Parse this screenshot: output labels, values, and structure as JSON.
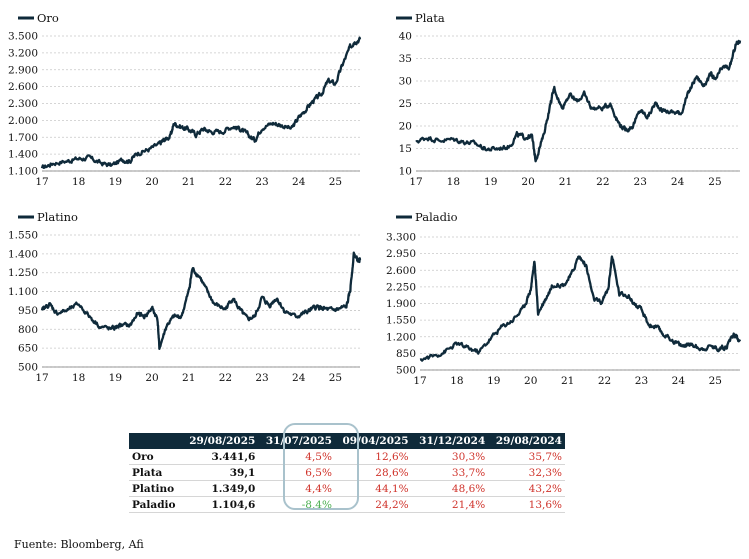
{
  "chart_data": [
    {
      "type": "line",
      "legend": "Oro",
      "x_ticks": [
        "17",
        "18",
        "19",
        "20",
        "21",
        "22",
        "23",
        "24",
        "25"
      ],
      "y_ticks": [
        "1.100",
        "1.400",
        "1.700",
        "2.000",
        "2.300",
        "2.600",
        "2.900",
        "3.200",
        "3.500"
      ],
      "ylim": [
        1100,
        3500
      ],
      "xlim": [
        2017.0,
        2025.67
      ],
      "points": [
        [
          2017.0,
          1150
        ],
        [
          2017.3,
          1240
        ],
        [
          2017.7,
          1280
        ],
        [
          2018.0,
          1320
        ],
        [
          2018.3,
          1330
        ],
        [
          2018.6,
          1240
        ],
        [
          2018.9,
          1200
        ],
        [
          2019.2,
          1300
        ],
        [
          2019.4,
          1280
        ],
        [
          2019.6,
          1420
        ],
        [
          2019.9,
          1480
        ],
        [
          2020.2,
          1580
        ],
        [
          2020.3,
          1640
        ],
        [
          2020.5,
          1720
        ],
        [
          2020.6,
          1950
        ],
        [
          2020.8,
          1880
        ],
        [
          2021.0,
          1840
        ],
        [
          2021.2,
          1750
        ],
        [
          2021.4,
          1850
        ],
        [
          2021.6,
          1800
        ],
        [
          2021.9,
          1800
        ],
        [
          2022.2,
          1900
        ],
        [
          2022.4,
          1850
        ],
        [
          2022.6,
          1750
        ],
        [
          2022.8,
          1650
        ],
        [
          2023.0,
          1880
        ],
        [
          2023.3,
          1950
        ],
        [
          2023.5,
          1920
        ],
        [
          2023.8,
          1850
        ],
        [
          2024.0,
          2050
        ],
        [
          2024.2,
          2200
        ],
        [
          2024.4,
          2350
        ],
        [
          2024.6,
          2450
        ],
        [
          2024.8,
          2700
        ],
        [
          2025.0,
          2650
        ],
        [
          2025.2,
          3000
        ],
        [
          2025.4,
          3300
        ],
        [
          2025.5,
          3400
        ],
        [
          2025.67,
          3440
        ]
      ]
    },
    {
      "type": "line",
      "legend": "Plata",
      "x_ticks": [
        "17",
        "18",
        "19",
        "20",
        "21",
        "22",
        "23",
        "24",
        "25"
      ],
      "y_ticks": [
        "10",
        "15",
        "20",
        "25",
        "30",
        "35",
        "40"
      ],
      "ylim": [
        10,
        40
      ],
      "xlim": [
        2017.0,
        2025.67
      ],
      "points": [
        [
          2017.0,
          16.5
        ],
        [
          2017.3,
          17.5
        ],
        [
          2017.6,
          16.8
        ],
        [
          2018.0,
          17.0
        ],
        [
          2018.3,
          16.5
        ],
        [
          2018.6,
          16.0
        ],
        [
          2018.9,
          14.8
        ],
        [
          2019.2,
          15.0
        ],
        [
          2019.5,
          15.5
        ],
        [
          2019.7,
          18.0
        ],
        [
          2019.9,
          17.5
        ],
        [
          2020.1,
          17.8
        ],
        [
          2020.2,
          12.5
        ],
        [
          2020.4,
          17.5
        ],
        [
          2020.6,
          25.0
        ],
        [
          2020.7,
          28.5
        ],
        [
          2020.9,
          24.0
        ],
        [
          2021.1,
          27.0
        ],
        [
          2021.3,
          25.5
        ],
        [
          2021.5,
          27.0
        ],
        [
          2021.7,
          24.0
        ],
        [
          2022.0,
          24.0
        ],
        [
          2022.2,
          25.0
        ],
        [
          2022.4,
          21.0
        ],
        [
          2022.6,
          19.0
        ],
        [
          2022.8,
          20.0
        ],
        [
          2023.0,
          23.5
        ],
        [
          2023.2,
          22.0
        ],
        [
          2023.4,
          25.0
        ],
        [
          2023.6,
          23.5
        ],
        [
          2023.9,
          23.0
        ],
        [
          2024.1,
          23.0
        ],
        [
          2024.3,
          27.5
        ],
        [
          2024.5,
          31.0
        ],
        [
          2024.7,
          29.0
        ],
        [
          2024.9,
          31.5
        ],
        [
          2025.0,
          30.0
        ],
        [
          2025.2,
          33.0
        ],
        [
          2025.4,
          33.0
        ],
        [
          2025.55,
          38.0
        ],
        [
          2025.67,
          39.0
        ]
      ]
    },
    {
      "type": "line",
      "legend": "Platino",
      "x_ticks": [
        "17",
        "18",
        "19",
        "20",
        "21",
        "22",
        "23",
        "24",
        "25"
      ],
      "y_ticks": [
        "500",
        "650",
        "800",
        "950",
        "1.100",
        "1.250",
        "1.400",
        "1.550"
      ],
      "ylim": [
        500,
        1550
      ],
      "xlim": [
        2017.0,
        2025.67
      ],
      "points": [
        [
          2017.0,
          950
        ],
        [
          2017.2,
          1000
        ],
        [
          2017.4,
          930
        ],
        [
          2017.7,
          950
        ],
        [
          2018.0,
          1000
        ],
        [
          2018.3,
          900
        ],
        [
          2018.6,
          820
        ],
        [
          2018.9,
          800
        ],
        [
          2019.1,
          830
        ],
        [
          2019.4,
          830
        ],
        [
          2019.6,
          920
        ],
        [
          2019.8,
          900
        ],
        [
          2020.0,
          970
        ],
        [
          2020.15,
          880
        ],
        [
          2020.2,
          650
        ],
        [
          2020.4,
          830
        ],
        [
          2020.6,
          900
        ],
        [
          2020.8,
          900
        ],
        [
          2021.0,
          1100
        ],
        [
          2021.1,
          1280
        ],
        [
          2021.3,
          1220
        ],
        [
          2021.5,
          1100
        ],
        [
          2021.7,
          1000
        ],
        [
          2022.0,
          960
        ],
        [
          2022.2,
          1050
        ],
        [
          2022.4,
          950
        ],
        [
          2022.6,
          880
        ],
        [
          2022.8,
          900
        ],
        [
          2023.0,
          1050
        ],
        [
          2023.2,
          990
        ],
        [
          2023.4,
          1050
        ],
        [
          2023.6,
          950
        ],
        [
          2023.9,
          900
        ],
        [
          2024.1,
          920
        ],
        [
          2024.3,
          950
        ],
        [
          2024.5,
          980
        ],
        [
          2024.7,
          960
        ],
        [
          2024.9,
          950
        ],
        [
          2025.1,
          960
        ],
        [
          2025.3,
          980
        ],
        [
          2025.4,
          1100
        ],
        [
          2025.5,
          1400
        ],
        [
          2025.6,
          1350
        ],
        [
          2025.67,
          1349
        ]
      ]
    },
    {
      "type": "line",
      "legend": "Paladio",
      "x_ticks": [
        "17",
        "18",
        "19",
        "20",
        "21",
        "22",
        "23",
        "24",
        "25"
      ],
      "y_ticks": [
        "500",
        "850",
        "1.200",
        "1.550",
        "1.900",
        "2.250",
        "2.600",
        "2.950",
        "3.300"
      ],
      "ylim": [
        500,
        3300
      ],
      "xlim": [
        2017.0,
        2025.67
      ],
      "points": [
        [
          2017.0,
          720
        ],
        [
          2017.4,
          800
        ],
        [
          2017.7,
          900
        ],
        [
          2018.0,
          1050
        ],
        [
          2018.3,
          960
        ],
        [
          2018.6,
          880
        ],
        [
          2018.9,
          1150
        ],
        [
          2019.2,
          1400
        ],
        [
          2019.5,
          1550
        ],
        [
          2019.8,
          1800
        ],
        [
          2020.0,
          2200
        ],
        [
          2020.1,
          2800
        ],
        [
          2020.2,
          1700
        ],
        [
          2020.4,
          2000
        ],
        [
          2020.6,
          2300
        ],
        [
          2020.9,
          2300
        ],
        [
          2021.1,
          2500
        ],
        [
          2021.3,
          2900
        ],
        [
          2021.5,
          2700
        ],
        [
          2021.7,
          2000
        ],
        [
          2021.9,
          1900
        ],
        [
          2022.1,
          2200
        ],
        [
          2022.2,
          2900
        ],
        [
          2022.4,
          2100
        ],
        [
          2022.6,
          2100
        ],
        [
          2022.8,
          1900
        ],
        [
          2023.0,
          1750
        ],
        [
          2023.2,
          1450
        ],
        [
          2023.4,
          1400
        ],
        [
          2023.6,
          1250
        ],
        [
          2023.9,
          1100
        ],
        [
          2024.1,
          1000
        ],
        [
          2024.3,
          1050
        ],
        [
          2024.6,
          950
        ],
        [
          2024.9,
          1000
        ],
        [
          2025.1,
          950
        ],
        [
          2025.3,
          1000
        ],
        [
          2025.5,
          1250
        ],
        [
          2025.67,
          1104
        ]
      ]
    }
  ],
  "table": {
    "headers": [
      "",
      "29/08/2025",
      "31/07/2025",
      "09/04/2025",
      "31/12/2024",
      "29/08/2024"
    ],
    "rows": [
      {
        "name": "Oro",
        "price": "3.441,6",
        "values": [
          "4,5%",
          "12,6%",
          "30,3%",
          "35,7%"
        ]
      },
      {
        "name": "Plata",
        "price": "39,1",
        "values": [
          "6,5%",
          "28,6%",
          "33,7%",
          "32,3%"
        ]
      },
      {
        "name": "Platino",
        "price": "1.349,0",
        "values": [
          "4,4%",
          "44,1%",
          "48,6%",
          "43,2%"
        ]
      },
      {
        "name": "Paladio",
        "price": "1.104,6",
        "values": [
          "-8,4%",
          "24,2%",
          "21,4%",
          "13,6%"
        ]
      }
    ]
  },
  "source": "Fuente: Bloomberg, Afi"
}
